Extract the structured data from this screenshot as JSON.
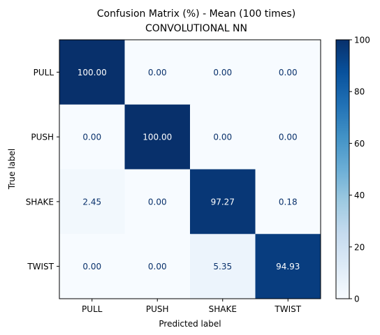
{
  "chart_data": {
    "type": "heatmap",
    "title": "Confusion Matrix (%) - Mean (100 times)",
    "subtitle": "CONVOLUTIONAL NN",
    "xlabel": "Predicted label",
    "ylabel": "True label",
    "x_categories": [
      "PULL",
      "PUSH",
      "SHAKE",
      "TWIST"
    ],
    "y_categories": [
      "PULL",
      "PUSH",
      "SHAKE",
      "TWIST"
    ],
    "values": [
      [
        100.0,
        0.0,
        0.0,
        0.0
      ],
      [
        0.0,
        100.0,
        0.0,
        0.0
      ],
      [
        2.45,
        0.0,
        97.27,
        0.18
      ],
      [
        0.0,
        0.0,
        5.35,
        94.93
      ]
    ],
    "value_labels": [
      [
        "100.00",
        "0.00",
        "0.00",
        "0.00"
      ],
      [
        "0.00",
        "100.00",
        "0.00",
        "0.00"
      ],
      [
        "2.45",
        "0.00",
        "97.27",
        "0.18"
      ],
      [
        "0.00",
        "0.00",
        "5.35",
        "94.93"
      ]
    ],
    "colormap": "Blues",
    "vmin": 0,
    "vmax": 100,
    "colorbar_ticks": [
      0,
      20,
      40,
      60,
      80,
      100
    ],
    "colorbar_tick_labels": [
      "0",
      "20",
      "40",
      "60",
      "80",
      "100"
    ]
  }
}
